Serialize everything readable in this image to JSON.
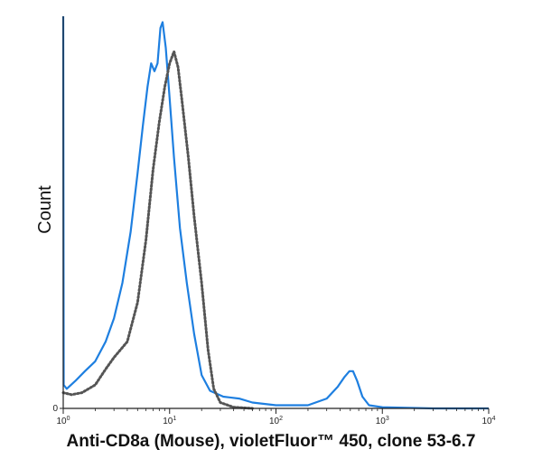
{
  "caption": "Anti-CD8a (Mouse), violetFluor™ 450, clone 53-6.7",
  "chart_data": {
    "type": "line",
    "title": "",
    "xlabel": "Anti-CD8a (Mouse), violetFluor™ 450, clone 53-6.7",
    "ylabel": "Count",
    "xscale": "log",
    "xlim": [
      1,
      10000
    ],
    "ylim": [
      0,
      100
    ],
    "x_ticks": [
      {
        "value": 1,
        "base": "10",
        "exp": "0"
      },
      {
        "value": 10,
        "base": "10",
        "exp": "1"
      },
      {
        "value": 100,
        "base": "10",
        "exp": "2"
      },
      {
        "value": 1000,
        "base": "10",
        "exp": "3"
      },
      {
        "value": 10000,
        "base": "10",
        "exp": "4"
      }
    ],
    "y_ticks": [
      {
        "value": 0,
        "label": "0"
      }
    ],
    "grid": false,
    "series": [
      {
        "color": "#1e7fe0",
        "style": "solid",
        "points": [
          [
            1.0,
            100
          ],
          [
            1.01,
            6
          ],
          [
            1.08,
            5
          ],
          [
            1.3,
            7
          ],
          [
            1.6,
            9.5
          ],
          [
            2.0,
            12
          ],
          [
            2.5,
            17
          ],
          [
            3.0,
            23
          ],
          [
            3.6,
            32
          ],
          [
            4.3,
            45
          ],
          [
            5.0,
            60
          ],
          [
            5.6,
            72
          ],
          [
            6.2,
            82
          ],
          [
            6.7,
            88
          ],
          [
            7.2,
            86
          ],
          [
            7.7,
            88
          ],
          [
            8.2,
            97
          ],
          [
            8.6,
            98.5
          ],
          [
            9.2,
            92
          ],
          [
            10.0,
            79
          ],
          [
            11.0,
            64
          ],
          [
            12.5,
            46
          ],
          [
            14.5,
            32
          ],
          [
            17.0,
            19
          ],
          [
            20.0,
            8.5
          ],
          [
            24.0,
            4.5
          ],
          [
            32.0,
            3
          ],
          [
            45.0,
            2.5
          ],
          [
            60.0,
            1.5
          ],
          [
            100.0,
            0.8
          ],
          [
            200.0,
            0.8
          ],
          [
            300.0,
            2.5
          ],
          [
            380.0,
            5.5
          ],
          [
            440.0,
            8
          ],
          [
            490.0,
            9.5
          ],
          [
            530.0,
            9.5
          ],
          [
            580.0,
            7
          ],
          [
            650.0,
            3
          ],
          [
            750.0,
            0.8
          ],
          [
            1000.0,
            0.3
          ],
          [
            3000.0,
            0
          ],
          [
            10000.0,
            0
          ]
        ]
      },
      {
        "color": "#555555",
        "style": "dotted",
        "points": [
          [
            1.0,
            4
          ],
          [
            1.2,
            3.5
          ],
          [
            1.5,
            4
          ],
          [
            2.0,
            6
          ],
          [
            2.5,
            10
          ],
          [
            3.0,
            13
          ],
          [
            4.0,
            17
          ],
          [
            5.0,
            27
          ],
          [
            6.0,
            43
          ],
          [
            7.0,
            61
          ],
          [
            8.0,
            73
          ],
          [
            9.0,
            82
          ],
          [
            10.0,
            88
          ],
          [
            11.0,
            91
          ],
          [
            12.0,
            87
          ],
          [
            13.0,
            79
          ],
          [
            15.0,
            64
          ],
          [
            17.0,
            49
          ],
          [
            20.0,
            32
          ],
          [
            23.0,
            15
          ],
          [
            26.0,
            5
          ],
          [
            30.0,
            1.5
          ],
          [
            40.0,
            0.3
          ],
          [
            60.0,
            0
          ]
        ]
      }
    ]
  }
}
